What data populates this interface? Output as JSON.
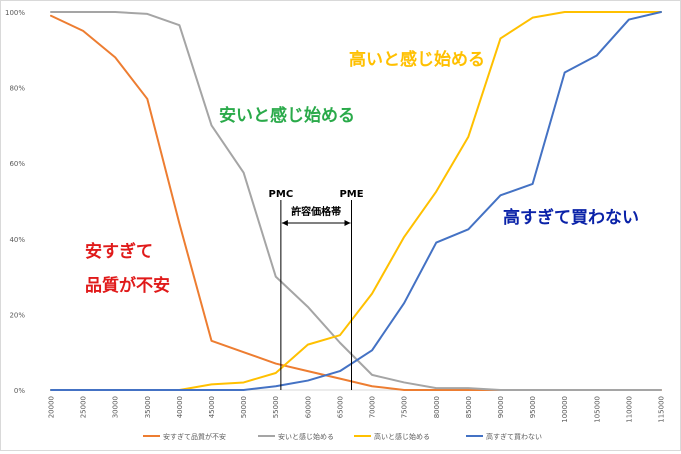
{
  "chart_data": {
    "type": "line",
    "categories": [
      "20000",
      "25000",
      "30000",
      "35000",
      "40000",
      "45000",
      "50000",
      "55000",
      "60000",
      "65000",
      "70000",
      "75000",
      "80000",
      "85000",
      "90000",
      "95000",
      "100000",
      "105000",
      "110000",
      "115000"
    ],
    "ylim": [
      0,
      100
    ],
    "yticks": [
      0,
      20,
      40,
      60,
      80,
      100
    ],
    "ytick_labels": [
      "0%",
      "20%",
      "40%",
      "60%",
      "80%",
      "100%"
    ],
    "grid": false,
    "legend_position": "bottom",
    "series": [
      {
        "name": "安すぎて品質が不安",
        "color": "#ED7D31",
        "values": [
          99,
          95,
          88,
          77,
          44,
          13,
          10,
          7,
          5,
          3,
          1,
          0,
          0,
          0,
          0,
          0,
          0,
          0,
          0,
          0
        ]
      },
      {
        "name": "安いと感じ始める",
        "color": "#A5A5A5",
        "values": [
          100,
          100,
          100,
          99.5,
          96.5,
          70,
          57.5,
          30,
          22,
          12.5,
          4,
          2,
          0.5,
          0.5,
          0,
          0,
          0,
          0,
          0,
          0
        ]
      },
      {
        "name": "高いと感じ始める",
        "color": "#FFC000",
        "values": [
          0,
          0,
          0,
          0,
          0,
          1.5,
          2,
          4.5,
          12,
          14.5,
          25.5,
          40.5,
          52.5,
          67,
          93,
          98.5,
          100,
          100,
          100,
          100
        ]
      },
      {
        "name": "高すぎて買わない",
        "color": "#4472C4",
        "values": [
          0,
          0,
          0,
          0,
          0,
          0,
          0,
          1,
          2.5,
          5,
          10.5,
          23,
          39,
          42.5,
          51.5,
          54.5,
          84,
          88.5,
          98,
          100
        ]
      }
    ],
    "vlines": [
      {
        "label": "PMC",
        "x": 55800
      },
      {
        "label": "PME",
        "x": 66800
      }
    ],
    "range_label": "許容価格帯",
    "annotations": [
      {
        "text": "高いと感じ始める",
        "color": "#FFC000"
      },
      {
        "text": "安いと感じ始める",
        "color": "#2AAA4A"
      },
      {
        "text": "高すぎて買わない",
        "color": "#0A22A8"
      },
      {
        "text": "安すぎて",
        "color": "#E01A1A"
      },
      {
        "text": "品質が不安",
        "color": "#E01A1A"
      }
    ]
  }
}
